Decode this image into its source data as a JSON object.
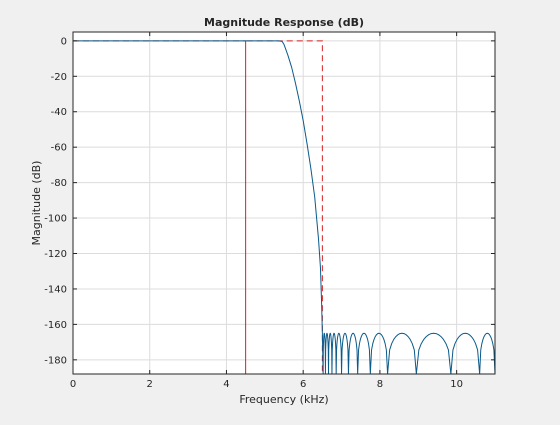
{
  "chart_data": {
    "type": "line",
    "title": "Magnitude Response (dB)",
    "xlabel": "Frequency (kHz)",
    "ylabel": "Magnitude (dB)",
    "xlim": [
      0,
      11
    ],
    "ylim": [
      -188,
      5
    ],
    "grid": true,
    "x_ticks": [
      0,
      2,
      4,
      6,
      8,
      10
    ],
    "y_ticks": [
      0,
      -20,
      -40,
      -60,
      -80,
      -100,
      -120,
      -140,
      -160,
      -180
    ],
    "colors": {
      "response": "#0b5a8a",
      "spec": "#d62020",
      "grid": "#dcdcdc",
      "axes": "#262626"
    },
    "series": [
      {
        "role": "response",
        "x": [
          0,
          5.35,
          5.45,
          5.5,
          5.6,
          5.7,
          5.8,
          5.9,
          6.0,
          6.1,
          6.2,
          6.3,
          6.4,
          6.45,
          6.48,
          6.5
        ],
        "y": [
          0,
          0,
          -0.3,
          -2,
          -8,
          -15,
          -24,
          -34,
          -45,
          -58,
          -72,
          -88,
          -112,
          -128,
          -148,
          -165
        ],
        "stopband_start": 6.5,
        "stopband_floor": -165,
        "stopband_nulls": [
          6.52,
          6.58,
          6.66,
          6.75,
          6.86,
          7.0,
          7.18,
          7.42,
          7.75,
          8.2,
          8.95,
          9.85,
          10.6,
          11.0
        ],
        "stopband_depth": -188
      },
      {
        "role": "spec",
        "x": [
          0,
          4.5,
          4.5,
          4.5,
          6.5,
          6.5
        ],
        "y": [
          0,
          0,
          -188,
          0,
          0,
          -188
        ]
      }
    ]
  }
}
